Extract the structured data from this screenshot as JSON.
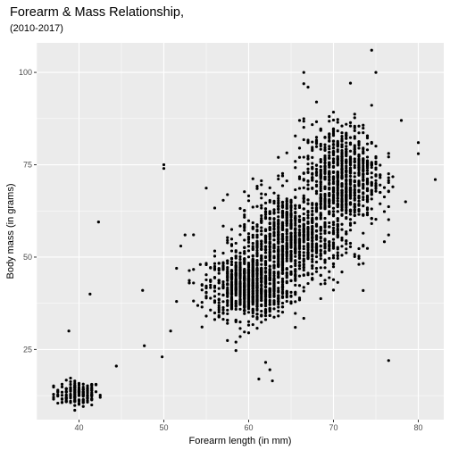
{
  "chart_data": {
    "type": "scatter",
    "title": "Forearm & Mass Relationship,",
    "subtitle": "(2010-2017)",
    "xlabel": "Forearm length (in mm)",
    "ylabel": "Body mass (in grams)",
    "xlim": [
      35,
      83
    ],
    "ylim": [
      6,
      108
    ],
    "x_ticks": [
      40,
      50,
      60,
      70,
      80
    ],
    "y_ticks": [
      25,
      50,
      75,
      100
    ],
    "grid": true,
    "legend": "none",
    "colors": {
      "panel": "#ebebeb",
      "grid": "#ffffff",
      "point": "#000000"
    },
    "clusters": [
      {
        "cx": 39.8,
        "cy": 13.0,
        "sx": 1.3,
        "sy": 1.7,
        "n": 170
      },
      {
        "cx": 60.0,
        "cy": 42.0,
        "sx": 2.4,
        "sy": 4.3,
        "n": 850
      },
      {
        "cx": 65.0,
        "cy": 55.0,
        "sx": 3.0,
        "sy": 6.5,
        "n": 900
      },
      {
        "cx": 71.0,
        "cy": 72.0,
        "sx": 2.2,
        "sy": 7.0,
        "n": 800
      }
    ],
    "outliers": [
      [
        42.3,
        59.5
      ],
      [
        41.3,
        40.0
      ],
      [
        38.8,
        30.0
      ],
      [
        44.4,
        20.5
      ],
      [
        50.0,
        75.0
      ],
      [
        50.0,
        74.0
      ],
      [
        49.8,
        23.0
      ],
      [
        47.5,
        41.0
      ],
      [
        47.7,
        26.0
      ],
      [
        50.8,
        30.0
      ],
      [
        51.5,
        38.0
      ],
      [
        52.5,
        56.0
      ],
      [
        52.0,
        53.0
      ],
      [
        53.5,
        43.0
      ],
      [
        54.3,
        48.0
      ],
      [
        62.0,
        21.5
      ],
      [
        62.5,
        19.5
      ],
      [
        61.2,
        17.0
      ],
      [
        62.8,
        16.5
      ],
      [
        60.0,
        29.5
      ],
      [
        58.5,
        27.0
      ],
      [
        66.5,
        100.0
      ],
      [
        67.0,
        96.0
      ],
      [
        76.5,
        22.0
      ],
      [
        78.0,
        87.0
      ],
      [
        80.0,
        81.0
      ],
      [
        82.0,
        71.0
      ],
      [
        80.0,
        78.0
      ],
      [
        74.5,
        106.0
      ],
      [
        75.0,
        100.0
      ],
      [
        66.0,
        87.0
      ],
      [
        68.0,
        92.0
      ],
      [
        63.5,
        77.0
      ],
      [
        66.0,
        79.5
      ],
      [
        64.0,
        72.0
      ],
      [
        76.5,
        56.0
      ]
    ]
  }
}
